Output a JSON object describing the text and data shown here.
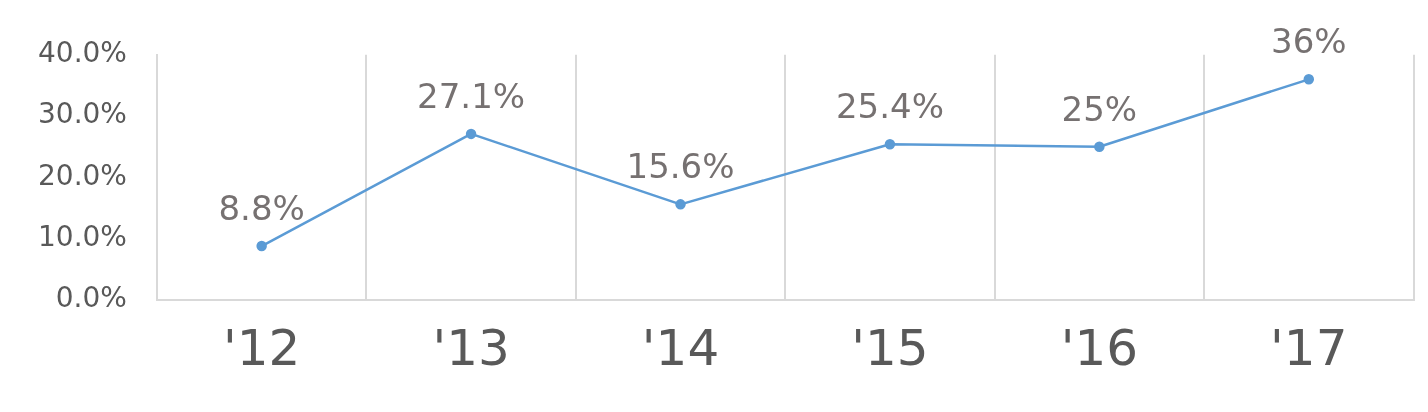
{
  "chart_data": {
    "type": "line",
    "categories": [
      "'12",
      "'13",
      "'14",
      "'15",
      "'16",
      "'17"
    ],
    "series": [
      {
        "color": "#5b9bd5",
        "values": [
          8.8,
          27.1,
          15.6,
          25.4,
          25,
          36
        ],
        "value_labels": [
          "8.8%",
          "27.1%",
          "15.6%",
          "25.4%",
          "25%",
          "36%"
        ]
      }
    ],
    "ylim": [
      0,
      40
    ],
    "yticks": [
      {
        "value": 0,
        "label": "0.0%"
      },
      {
        "value": 10,
        "label": "10.0%"
      },
      {
        "value": 20,
        "label": "20.0%"
      },
      {
        "value": 30,
        "label": "30.0%"
      },
      {
        "value": 40,
        "label": "40.0%"
      }
    ],
    "grid": "x",
    "legend": false,
    "marker": "circle",
    "line_style": "solid"
  }
}
